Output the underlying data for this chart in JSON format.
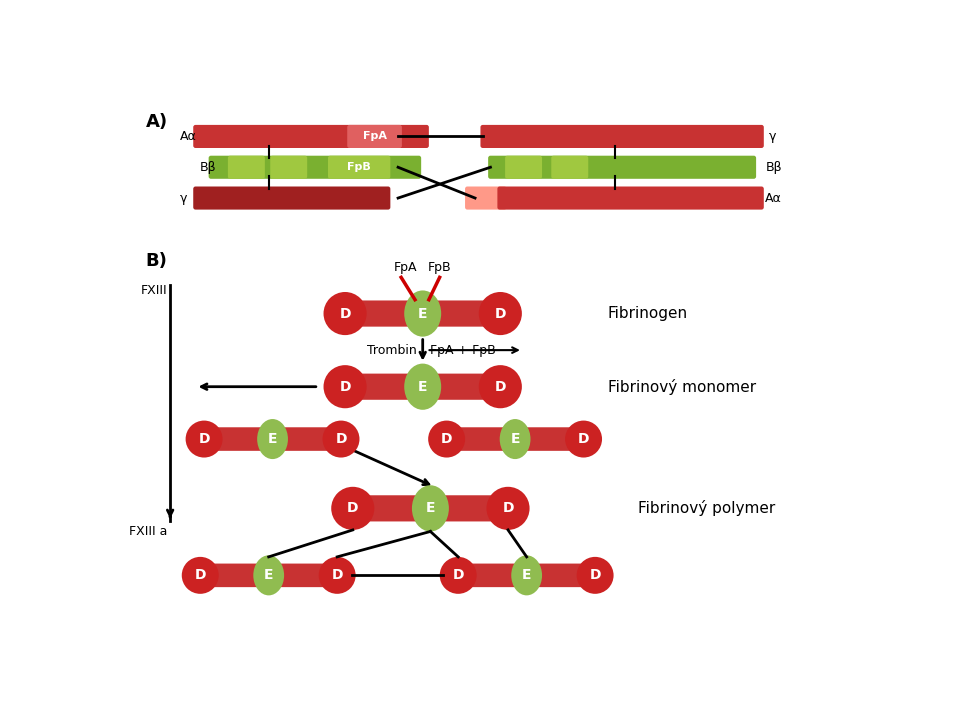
{
  "bg_color": "#ffffff",
  "bar_red": "#c83232",
  "bar_red_dark": "#a02020",
  "bar_red_light": "#e05050",
  "bar_red_vlight": "#ff9999",
  "bar_green": "#7ab030",
  "bar_green_light": "#a0c840",
  "fpa_color": "#e06060",
  "D_color": "#cc2222",
  "E_color": "#90bc50",
  "A_label": "A)",
  "B_label": "B)",
  "Aalpha": "Aα",
  "Bbeta": "Bβ",
  "gamma": "γ",
  "FpA": "FpA",
  "FpB": "FpB",
  "D_label": "D",
  "E_label": "E",
  "Fibrinogen": "Fibrinogen",
  "FibrinovyMonomer": "Fibrinový monomer",
  "FibrinovyPolymer": "Fibrinový polymer",
  "Trombin": "Trombin",
  "FpAFpB": "FpA + FpB",
  "FXIII": "FXIII",
  "FXIIIa": "FXIII a"
}
